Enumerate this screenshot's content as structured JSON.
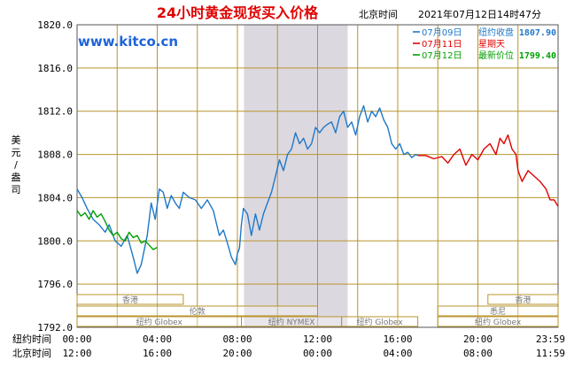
{
  "header": {
    "title": "24小时黄金现货买入价格",
    "time_label": "北京时间",
    "timestamp": "2021年07月12日14时47分"
  },
  "watermark": "www.kitco.cn",
  "legend": [
    {
      "date": "07月09日",
      "label": "纽约收盘",
      "value": "1807.90",
      "color": "#1e78c8"
    },
    {
      "date": "07月11日",
      "label": "星期天",
      "value": "",
      "color": "#e00000"
    },
    {
      "date": "07月12日",
      "label": "最新价位",
      "value": "1799.40",
      "color": "#00a000"
    }
  ],
  "y_axis_label": [
    "美",
    "元",
    "/",
    "盎",
    "司"
  ],
  "x_rows": [
    {
      "label": "纽约时间",
      "ticks": [
        "00:00",
        "04:00",
        "08:00",
        "12:00",
        "16:00",
        "20:00",
        "23:59"
      ]
    },
    {
      "label": "北京时间",
      "ticks": [
        "12:00",
        "16:00",
        "20:00",
        "00:00",
        "04:00",
        "08:00",
        "11:59"
      ]
    }
  ],
  "markets": [
    {
      "name": "香港",
      "row": 0,
      "from": 0,
      "to": 5.3
    },
    {
      "name": "香港",
      "row": 0,
      "from": 20.5,
      "to": 24
    },
    {
      "name": "伦敦",
      "row": 1,
      "from": 0,
      "to": 12
    },
    {
      "name": "悉尼",
      "row": 1,
      "from": 18,
      "to": 24
    },
    {
      "name": "纽约 Globex",
      "row": 2,
      "from": 0,
      "to": 8.2
    },
    {
      "name": "纽约 NYMEX",
      "row": 2,
      "from": 8.2,
      "to": 13.2
    },
    {
      "name": "纽约 Globex",
      "row": 2,
      "from": 13.2,
      "to": 17
    },
    {
      "name": "纽约 Globex",
      "row": 2,
      "from": 18,
      "to": 24
    }
  ],
  "nymex_shade": {
    "from": 8.33,
    "to": 13.5,
    "color": "#dcd8e0"
  },
  "colors": {
    "grid": "#b8942c",
    "border": "#555555",
    "title": "#e00000",
    "watermark": "#1e64d8",
    "market_box": "#b8942c",
    "market_text": "#777777"
  },
  "chart_data": {
    "type": "line",
    "title": "24小时黄金现货买入价格",
    "xlabel": "纽约时间 / 北京时间",
    "ylabel": "美元/盎司",
    "xlim": [
      0,
      24
    ],
    "ylim": [
      1792.0,
      1820.0
    ],
    "yticks": [
      1792.0,
      1796.0,
      1800.0,
      1804.0,
      1808.0,
      1812.0,
      1816.0,
      1820.0
    ],
    "grid": true,
    "legend_position": "top-right",
    "series": [
      {
        "name": "07月09日",
        "color": "#1e78c8",
        "x": [
          0,
          0.25,
          0.5,
          0.8,
          1.1,
          1.4,
          1.6,
          1.9,
          2.2,
          2.5,
          2.8,
          3.0,
          3.2,
          3.5,
          3.7,
          3.9,
          4.1,
          4.3,
          4.5,
          4.7,
          4.9,
          5.1,
          5.3,
          5.6,
          5.9,
          6.2,
          6.5,
          6.8,
          7.1,
          7.3,
          7.5,
          7.7,
          7.9,
          8.0,
          8.1,
          8.2,
          8.3,
          8.5,
          8.7,
          8.9,
          9.1,
          9.3,
          9.5,
          9.7,
          9.9,
          10.1,
          10.3,
          10.5,
          10.7,
          10.9,
          11.1,
          11.3,
          11.5,
          11.7,
          11.9,
          12.1,
          12.3,
          12.5,
          12.7,
          12.9,
          13.1,
          13.3,
          13.5,
          13.7,
          13.9,
          14.1,
          14.3,
          14.5,
          14.7,
          14.9,
          15.1,
          15.3,
          15.5,
          15.7,
          15.9,
          16.1,
          16.3,
          16.5,
          16.7,
          16.9,
          17.0
        ],
        "y": [
          1804.8,
          1804.0,
          1803.0,
          1802.0,
          1801.5,
          1800.8,
          1801.5,
          1800.0,
          1799.5,
          1800.5,
          1798.5,
          1797.0,
          1797.8,
          1800.5,
          1803.5,
          1802.0,
          1804.8,
          1804.5,
          1803.0,
          1804.2,
          1803.5,
          1803.0,
          1804.5,
          1804.0,
          1803.8,
          1803.0,
          1803.8,
          1802.8,
          1800.5,
          1801.0,
          1799.8,
          1798.5,
          1797.8,
          1798.8,
          1799.3,
          1801.5,
          1803.0,
          1802.5,
          1800.5,
          1802.5,
          1801.0,
          1802.5,
          1803.5,
          1804.5,
          1806.0,
          1807.5,
          1806.5,
          1808.0,
          1808.5,
          1810.0,
          1809.0,
          1809.5,
          1808.5,
          1809.0,
          1810.5,
          1810.0,
          1810.5,
          1810.8,
          1811.0,
          1810.0,
          1811.5,
          1812.0,
          1810.5,
          1811.0,
          1809.8,
          1811.5,
          1812.5,
          1811.0,
          1812.0,
          1811.5,
          1812.3,
          1811.2,
          1810.5,
          1809.0,
          1808.5,
          1809.0,
          1808.0,
          1808.2,
          1807.7,
          1808.0,
          1807.9
        ]
      },
      {
        "name": "07月11日",
        "color": "#e00000",
        "x": [
          17.0,
          17.4,
          17.8,
          18.2,
          18.5,
          18.8,
          19.1,
          19.4,
          19.7,
          20.0,
          20.3,
          20.6,
          20.9,
          21.1,
          21.3,
          21.5,
          21.7,
          21.9,
          22.0,
          22.2,
          22.5,
          22.8,
          23.1,
          23.4,
          23.6,
          23.8,
          24.0
        ],
        "y": [
          1807.9,
          1807.9,
          1807.6,
          1807.8,
          1807.2,
          1808.0,
          1808.5,
          1807.0,
          1808.0,
          1807.5,
          1808.5,
          1809.0,
          1808.0,
          1809.5,
          1809.0,
          1809.8,
          1808.5,
          1808.0,
          1806.5,
          1805.5,
          1806.5,
          1806.0,
          1805.5,
          1804.8,
          1803.8,
          1803.8,
          1803.2
        ]
      }
    ]
  },
  "green_series": {
    "name": "07月12日",
    "color": "#00a000",
    "x": [
      0,
      0.2,
      0.4,
      0.6,
      0.8,
      1.0,
      1.2,
      1.4,
      1.6,
      1.8,
      2.0,
      2.2,
      2.4,
      2.6,
      2.8,
      3.0,
      3.2,
      3.4,
      3.6,
      3.8,
      4.0
    ],
    "y": [
      1802.8,
      1802.3,
      1802.6,
      1802.0,
      1802.8,
      1802.2,
      1802.5,
      1801.8,
      1801.0,
      1800.5,
      1800.8,
      1800.2,
      1800.0,
      1800.8,
      1800.3,
      1800.5,
      1799.8,
      1800.0,
      1799.6,
      1799.2,
      1799.4
    ]
  }
}
